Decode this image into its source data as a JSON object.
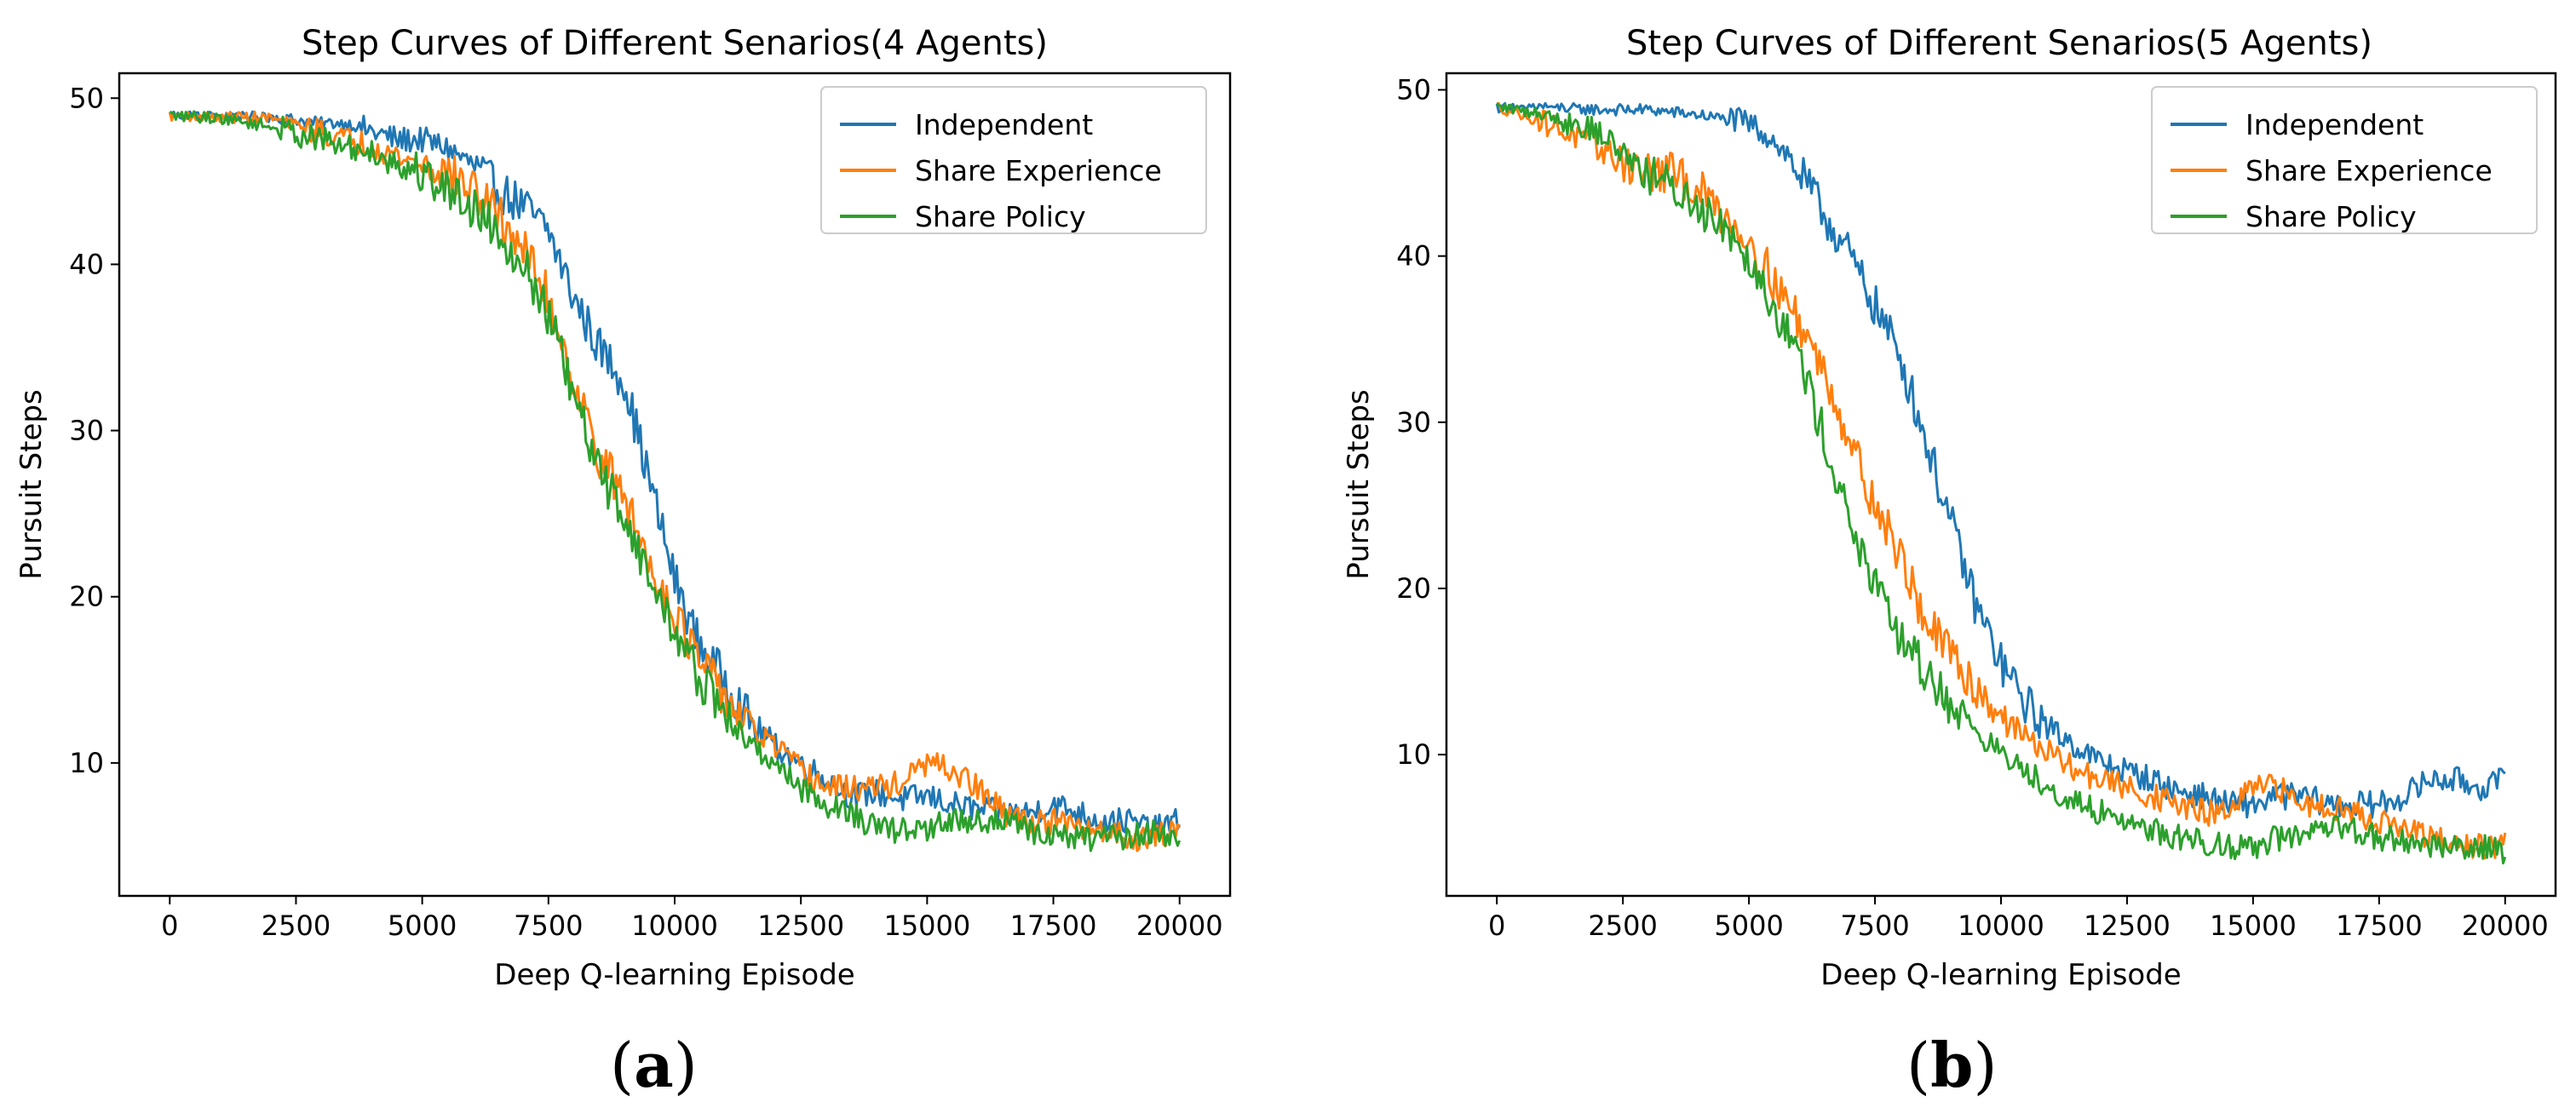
{
  "colors": {
    "independent": "#1f77b4",
    "share_experience": "#ff7f0e",
    "share_policy": "#2ca02c"
  },
  "chart_data": [
    {
      "type": "line",
      "title": "Step Curves of Different Senarios(4 Agents)",
      "xlabel": "Deep Q-learning Episode",
      "ylabel": "Pursuit Steps",
      "xlim": [
        -1000,
        21000
      ],
      "ylim": [
        2,
        51.5
      ],
      "xticks": [
        0,
        2500,
        5000,
        7500,
        10000,
        12500,
        15000,
        17500,
        20000
      ],
      "yticks": [
        10,
        20,
        30,
        40,
        50
      ],
      "legend": "top-right",
      "caption": "a",
      "series": [
        {
          "name": "Independent",
          "color": "independent",
          "points": [
            [
              0,
              49
            ],
            [
              1000,
              49
            ],
            [
              2000,
              48.9
            ],
            [
              3000,
              48.5
            ],
            [
              3500,
              48.5
            ],
            [
              4000,
              48
            ],
            [
              4500,
              47.5
            ],
            [
              5000,
              47.5
            ],
            [
              5500,
              47
            ],
            [
              6000,
              46
            ],
            [
              6500,
              44.5
            ],
            [
              7000,
              43.5
            ],
            [
              7500,
              42
            ],
            [
              8000,
              38
            ],
            [
              8500,
              35
            ],
            [
              9000,
              33
            ],
            [
              9500,
              27
            ],
            [
              10000,
              21
            ],
            [
              10500,
              17
            ],
            [
              11000,
              15
            ],
            [
              11500,
              12.5
            ],
            [
              12000,
              11
            ],
            [
              12500,
              10
            ],
            [
              13000,
              9
            ],
            [
              13500,
              8
            ],
            [
              14000,
              8.2
            ],
            [
              14500,
              7.8
            ],
            [
              15000,
              8
            ],
            [
              15500,
              7.5
            ],
            [
              16000,
              7.2
            ],
            [
              16500,
              7
            ],
            [
              17000,
              7
            ],
            [
              17500,
              7.5
            ],
            [
              18000,
              7
            ],
            [
              18500,
              6.5
            ],
            [
              19000,
              6.5
            ],
            [
              19500,
              6
            ],
            [
              20000,
              6.5
            ]
          ]
        },
        {
          "name": "Share Experience",
          "color": "share_experience",
          "points": [
            [
              0,
              49
            ],
            [
              1000,
              48.9
            ],
            [
              2000,
              48.8
            ],
            [
              3000,
              48
            ],
            [
              3500,
              47.5
            ],
            [
              4000,
              47.2
            ],
            [
              4500,
              46.5
            ],
            [
              5000,
              46
            ],
            [
              5500,
              45.5
            ],
            [
              6000,
              44.5
            ],
            [
              6500,
              43
            ],
            [
              7000,
              41
            ],
            [
              7500,
              38
            ],
            [
              8000,
              33
            ],
            [
              8500,
              28.5
            ],
            [
              9000,
              26
            ],
            [
              9500,
              22
            ],
            [
              10000,
              19
            ],
            [
              10500,
              16
            ],
            [
              11000,
              14
            ],
            [
              11500,
              12
            ],
            [
              12000,
              11
            ],
            [
              12500,
              9.5
            ],
            [
              13000,
              8.5
            ],
            [
              13500,
              8.5
            ],
            [
              14000,
              8.5
            ],
            [
              14500,
              8.8
            ],
            [
              15000,
              10
            ],
            [
              15500,
              9.5
            ],
            [
              16000,
              8.5
            ],
            [
              16500,
              7
            ],
            [
              17000,
              6.5
            ],
            [
              17500,
              6.5
            ],
            [
              18000,
              6
            ],
            [
              18500,
              6
            ],
            [
              19000,
              5.5
            ],
            [
              19500,
              5.5
            ],
            [
              20000,
              6
            ]
          ]
        },
        {
          "name": "Share Policy",
          "color": "share_policy",
          "points": [
            [
              0,
              49
            ],
            [
              1000,
              48.8
            ],
            [
              2000,
              48.3
            ],
            [
              3000,
              47.5
            ],
            [
              3500,
              47
            ],
            [
              4000,
              46.8
            ],
            [
              4500,
              46
            ],
            [
              5000,
              45.5
            ],
            [
              5500,
              44.5
            ],
            [
              6000,
              43.5
            ],
            [
              6500,
              42
            ],
            [
              7000,
              40
            ],
            [
              7500,
              37
            ],
            [
              8000,
              32
            ],
            [
              8500,
              27.5
            ],
            [
              9000,
              25
            ],
            [
              9500,
              21
            ],
            [
              10000,
              18
            ],
            [
              10500,
              15
            ],
            [
              11000,
              13
            ],
            [
              11500,
              11
            ],
            [
              12000,
              10
            ],
            [
              12500,
              8.5
            ],
            [
              13000,
              7.5
            ],
            [
              13500,
              7
            ],
            [
              14000,
              6
            ],
            [
              14500,
              6
            ],
            [
              15000,
              6
            ],
            [
              15500,
              6.5
            ],
            [
              16000,
              6.5
            ],
            [
              16500,
              6.5
            ],
            [
              17000,
              6
            ],
            [
              17500,
              5.5
            ],
            [
              18000,
              5.5
            ],
            [
              18500,
              5.5
            ],
            [
              19000,
              5.5
            ],
            [
              19500,
              6
            ],
            [
              20000,
              5
            ]
          ]
        }
      ]
    },
    {
      "type": "line",
      "title": "Step Curves of Different Senarios(5 Agents)",
      "xlabel": "Deep Q-learning Episode",
      "ylabel": "Pursuit Steps",
      "xlim": [
        -1000,
        21000
      ],
      "ylim": [
        1.5,
        51
      ],
      "xticks": [
        0,
        2500,
        5000,
        7500,
        10000,
        12500,
        15000,
        17500,
        20000
      ],
      "yticks": [
        10,
        20,
        30,
        40,
        50
      ],
      "legend": "top-right",
      "caption": "b",
      "series": [
        {
          "name": "Independent",
          "color": "independent",
          "points": [
            [
              0,
              49
            ],
            [
              1000,
              49
            ],
            [
              2000,
              48.8
            ],
            [
              3000,
              48.8
            ],
            [
              4000,
              48.5
            ],
            [
              5000,
              48
            ],
            [
              5500,
              47
            ],
            [
              6000,
              45
            ],
            [
              6500,
              42.5
            ],
            [
              7000,
              40
            ],
            [
              7500,
              37
            ],
            [
              8000,
              34
            ],
            [
              8500,
              29
            ],
            [
              9000,
              24
            ],
            [
              9500,
              19
            ],
            [
              10000,
              15.5
            ],
            [
              10500,
              13
            ],
            [
              11000,
              11.5
            ],
            [
              11500,
              10.5
            ],
            [
              12000,
              9.5
            ],
            [
              12500,
              9
            ],
            [
              13000,
              8.5
            ],
            [
              13500,
              7.8
            ],
            [
              14000,
              7.5
            ],
            [
              14500,
              7
            ],
            [
              15000,
              7
            ],
            [
              15500,
              7.5
            ],
            [
              16000,
              7.5
            ],
            [
              16500,
              7
            ],
            [
              17000,
              7
            ],
            [
              17500,
              7
            ],
            [
              18000,
              7.5
            ],
            [
              18500,
              8.5
            ],
            [
              19000,
              8.5
            ],
            [
              19500,
              8
            ],
            [
              20000,
              8.5
            ]
          ]
        },
        {
          "name": "Share Experience",
          "color": "share_experience",
          "points": [
            [
              0,
              49
            ],
            [
              1000,
              48
            ],
            [
              2000,
              46.5
            ],
            [
              3000,
              45
            ],
            [
              3500,
              45
            ],
            [
              4000,
              44
            ],
            [
              4500,
              42.5
            ],
            [
              5000,
              41
            ],
            [
              5500,
              38.5
            ],
            [
              6000,
              36
            ],
            [
              6500,
              33
            ],
            [
              7000,
              29
            ],
            [
              7500,
              25
            ],
            [
              8000,
              22
            ],
            [
              8500,
              18
            ],
            [
              9000,
              16
            ],
            [
              9500,
              14
            ],
            [
              10000,
              12.5
            ],
            [
              10500,
              11
            ],
            [
              11000,
              10
            ],
            [
              11500,
              9
            ],
            [
              12000,
              8.5
            ],
            [
              12500,
              8
            ],
            [
              13000,
              7.5
            ],
            [
              13500,
              7
            ],
            [
              14000,
              6.5
            ],
            [
              14500,
              6.5
            ],
            [
              15000,
              8
            ],
            [
              15500,
              8
            ],
            [
              16000,
              7
            ],
            [
              16500,
              7
            ],
            [
              17000,
              6.5
            ],
            [
              17500,
              6
            ],
            [
              18000,
              5.5
            ],
            [
              18500,
              5
            ],
            [
              19000,
              4.5
            ],
            [
              19500,
              4.5
            ],
            [
              20000,
              4.5
            ]
          ]
        },
        {
          "name": "Share Policy",
          "color": "share_policy",
          "points": [
            [
              0,
              49
            ],
            [
              1000,
              48.5
            ],
            [
              2000,
              47.5
            ],
            [
              3000,
              45
            ],
            [
              3500,
              44
            ],
            [
              4000,
              43
            ],
            [
              4500,
              42
            ],
            [
              5000,
              40
            ],
            [
              5500,
              37
            ],
            [
              6000,
              34
            ],
            [
              6500,
              29
            ],
            [
              7000,
              24
            ],
            [
              7500,
              20
            ],
            [
              8000,
              17
            ],
            [
              8500,
              15
            ],
            [
              9000,
              13
            ],
            [
              9500,
              11.5
            ],
            [
              10000,
              10
            ],
            [
              10500,
              9
            ],
            [
              11000,
              8
            ],
            [
              11500,
              7
            ],
            [
              12000,
              6.5
            ],
            [
              12500,
              6
            ],
            [
              13000,
              5.5
            ],
            [
              13500,
              5
            ],
            [
              14000,
              4.8
            ],
            [
              14500,
              4.5
            ],
            [
              15000,
              4.5
            ],
            [
              15500,
              5
            ],
            [
              16000,
              5
            ],
            [
              16500,
              5.5
            ],
            [
              17000,
              5.5
            ],
            [
              17500,
              5
            ],
            [
              18000,
              4.8
            ],
            [
              18500,
              4.5
            ],
            [
              19000,
              4.5
            ],
            [
              19500,
              4.5
            ],
            [
              20000,
              4.2
            ]
          ]
        }
      ]
    }
  ]
}
